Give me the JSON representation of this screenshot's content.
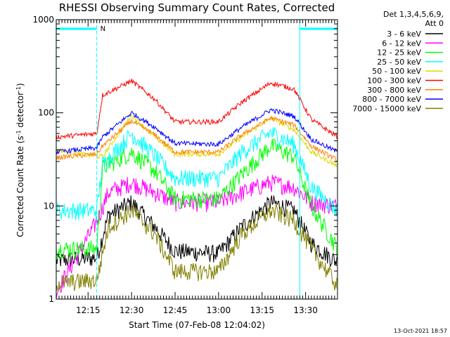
{
  "chart_data": {
    "type": "line",
    "title": "RHESSI Observing Summary Count Rates, Corrected",
    "xlabel": "Start Time (07-Feb-08 12:04:02)",
    "ylabel_main": "Corrected Count Rate (s",
    "ylabel_sup1": "-1",
    "ylabel_mid": " detector",
    "ylabel_sup2": "-1",
    "ylabel_end": ")",
    "yscale": "log",
    "ylim": [
      1,
      1000
    ],
    "xlim": [
      "12:04:02",
      "13:41:00"
    ],
    "y_ticks": [
      "1",
      "10",
      "100",
      "1000"
    ],
    "x_ticks": [
      "12:15",
      "12:30",
      "12:45",
      "13:00",
      "13:15",
      "13:30"
    ],
    "legend_header": [
      "Det 1,3,4,5,6,9,",
      "Att 0"
    ],
    "legend_placement": "right",
    "timestamp": "13-Oct-2021 18:57",
    "night_marker_label": "N",
    "night_bars": [
      [
        "12:04",
        "12:18"
      ],
      [
        "13:28",
        "13:41"
      ]
    ],
    "dashed_markers": [
      "12:18",
      "13:41"
    ],
    "solid_markers": [
      "12:04",
      "13:28"
    ],
    "series": [
      {
        "name": "3 - 6 keV",
        "color": "#000000",
        "points": [
          [
            "12:04",
            2.6
          ],
          [
            "12:18",
            2.8
          ],
          [
            "12:22",
            8
          ],
          [
            "12:30",
            11
          ],
          [
            "12:38",
            6
          ],
          [
            "12:45",
            3.3
          ],
          [
            "13:00",
            3.1
          ],
          [
            "13:08",
            6
          ],
          [
            "13:18",
            11
          ],
          [
            "13:26",
            9
          ],
          [
            "13:32",
            4
          ],
          [
            "13:41",
            2.5
          ]
        ]
      },
      {
        "name": "6 - 12 keV",
        "color": "#ff00ff",
        "points": [
          [
            "12:04",
            1.2
          ],
          [
            "12:18",
            6.8
          ],
          [
            "12:22",
            14
          ],
          [
            "12:30",
            18
          ],
          [
            "12:38",
            14
          ],
          [
            "12:45",
            11
          ],
          [
            "13:00",
            11
          ],
          [
            "13:08",
            14
          ],
          [
            "13:18",
            18
          ],
          [
            "13:26",
            16
          ],
          [
            "13:32",
            11
          ],
          [
            "13:41",
            10
          ]
        ]
      },
      {
        "name": "12 - 25 keV",
        "color": "#00ff00",
        "points": [
          [
            "12:04",
            3.5
          ],
          [
            "12:18",
            3.5
          ],
          [
            "12:20",
            26
          ],
          [
            "12:30",
            38
          ],
          [
            "12:38",
            24
          ],
          [
            "12:45",
            12
          ],
          [
            "13:00",
            12
          ],
          [
            "13:08",
            22
          ],
          [
            "13:18",
            45
          ],
          [
            "13:26",
            34
          ],
          [
            "13:32",
            10
          ],
          [
            "13:41",
            3.5
          ]
        ]
      },
      {
        "name": "25 - 50 keV",
        "color": "#00ffff",
        "points": [
          [
            "12:04",
            9
          ],
          [
            "12:18",
            9
          ],
          [
            "12:20",
            28
          ],
          [
            "12:30",
            60
          ],
          [
            "12:38",
            35
          ],
          [
            "12:45",
            20
          ],
          [
            "13:00",
            20
          ],
          [
            "13:08",
            38
          ],
          [
            "13:18",
            62
          ],
          [
            "13:26",
            46
          ],
          [
            "13:32",
            16
          ],
          [
            "13:41",
            9
          ]
        ]
      },
      {
        "name": "50 - 100 keV",
        "color": "#e0d800",
        "points": [
          [
            "12:04",
            40
          ],
          [
            "12:18",
            34
          ],
          [
            "12:20",
            34
          ],
          [
            "12:30",
            95
          ],
          [
            "12:38",
            55
          ],
          [
            "12:45",
            36
          ],
          [
            "13:00",
            36
          ],
          [
            "13:08",
            55
          ],
          [
            "13:18",
            88
          ],
          [
            "13:26",
            66
          ],
          [
            "13:32",
            38
          ],
          [
            "13:41",
            27
          ]
        ]
      },
      {
        "name": "100 - 300 keV",
        "color": "#ff0000",
        "points": [
          [
            "12:04",
            55
          ],
          [
            "12:18",
            60
          ],
          [
            "12:20",
            155
          ],
          [
            "12:30",
            220
          ],
          [
            "12:38",
            140
          ],
          [
            "12:45",
            80
          ],
          [
            "13:00",
            80
          ],
          [
            "13:08",
            130
          ],
          [
            "13:18",
            210
          ],
          [
            "13:26",
            180
          ],
          [
            "13:32",
            85
          ],
          [
            "13:41",
            55
          ]
        ]
      },
      {
        "name": "300 - 800 keV",
        "color": "#ff8000",
        "points": [
          [
            "12:04",
            33
          ],
          [
            "12:18",
            36
          ],
          [
            "12:20",
            44
          ],
          [
            "12:30",
            82
          ],
          [
            "12:38",
            58
          ],
          [
            "12:45",
            38
          ],
          [
            "13:00",
            38
          ],
          [
            "13:08",
            58
          ],
          [
            "13:18",
            88
          ],
          [
            "13:26",
            74
          ],
          [
            "13:32",
            44
          ],
          [
            "13:41",
            31
          ]
        ]
      },
      {
        "name": "800 - 7000 keV",
        "color": "#0000ff",
        "points": [
          [
            "12:04",
            38
          ],
          [
            "12:18",
            42
          ],
          [
            "12:20",
            55
          ],
          [
            "12:30",
            100
          ],
          [
            "12:38",
            70
          ],
          [
            "12:45",
            47
          ],
          [
            "13:00",
            46
          ],
          [
            "13:08",
            70
          ],
          [
            "13:18",
            108
          ],
          [
            "13:26",
            92
          ],
          [
            "13:32",
            52
          ],
          [
            "13:41",
            38
          ]
        ]
      },
      {
        "name": "7000 - 15000 keV",
        "color": "#808000",
        "points": [
          [
            "12:04",
            1.5
          ],
          [
            "12:18",
            1.6
          ],
          [
            "12:22",
            6
          ],
          [
            "12:30",
            9
          ],
          [
            "12:38",
            5
          ],
          [
            "12:45",
            2
          ],
          [
            "13:00",
            2
          ],
          [
            "13:08",
            5
          ],
          [
            "13:18",
            9
          ],
          [
            "13:26",
            7
          ],
          [
            "13:32",
            3.5
          ],
          [
            "13:41",
            1.4
          ]
        ]
      }
    ]
  }
}
